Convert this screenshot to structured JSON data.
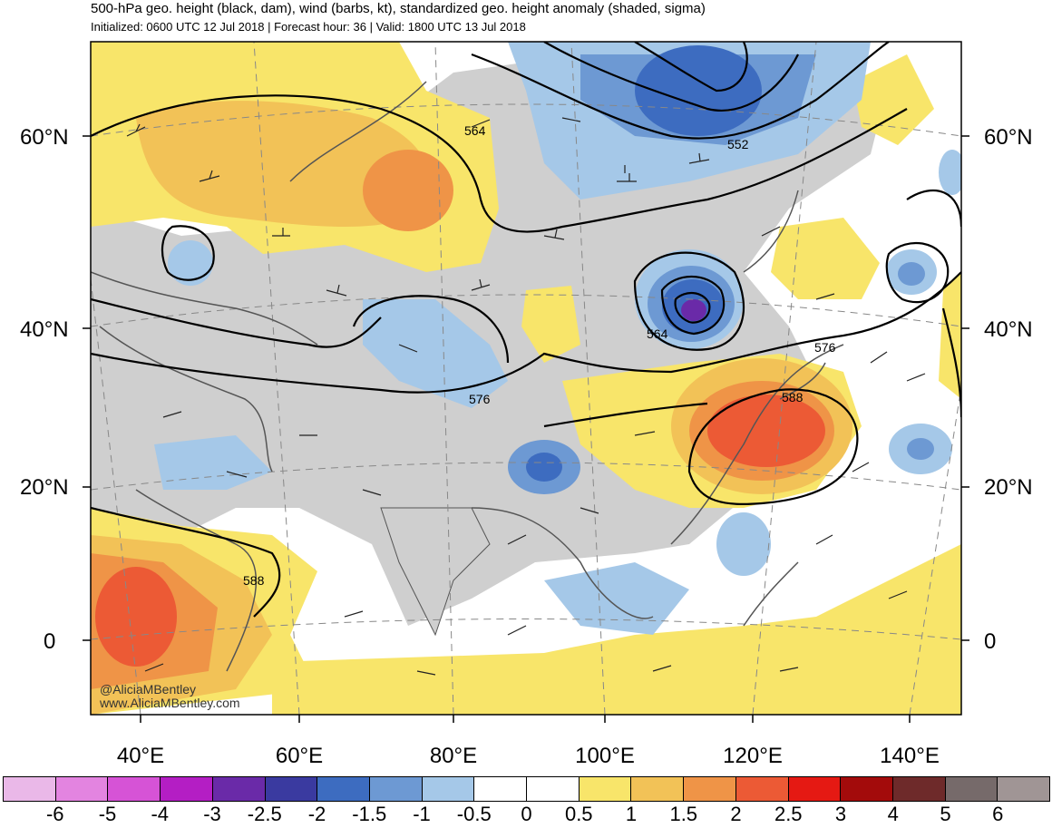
{
  "title": "500-hPa geo. height (black, dam), wind (barbs, kt), standardized geo. height anomaly (shaded, sigma)",
  "subtitle": "Initialized: 0600 UTC 12 Jul 2018 | Forecast hour: 36 | Valid: 1800 UTC 13 Jul 2018",
  "lat_labels": [
    "60°N",
    "40°N",
    "20°N",
    "0"
  ],
  "lon_labels": [
    "40°E",
    "60°E",
    "80°E",
    "100°E",
    "120°E",
    "140°E"
  ],
  "contour_labels": [
    "564",
    "552",
    "564",
    "576",
    "576",
    "588",
    "588"
  ],
  "credit": {
    "handle": "@AliciaMBentley",
    "site": "www.AliciaMBentley.com"
  },
  "colorbar": {
    "labels": [
      "-6",
      "-5",
      "-4",
      "-3",
      "-2.5",
      "-2",
      "-1.5",
      "-1",
      "-0.5",
      "0",
      "0.5",
      "1",
      "1.5",
      "2",
      "2.5",
      "3",
      "4",
      "5",
      "6"
    ],
    "colors": [
      "#eab8e8",
      "#e384e0",
      "#d653d6",
      "#b41ec4",
      "#6a2aa8",
      "#3a3aa0",
      "#3d6cc0",
      "#6d99d3",
      "#a5c8e8",
      "#ffffff",
      "#ffffff",
      "#f8e56a",
      "#f2c257",
      "#ef9447",
      "#ec5a35",
      "#e51913",
      "#a30b0b",
      "#6e2a2a",
      "#766a6a",
      "#a09595"
    ]
  },
  "colors": {
    "land_gray": "#cfcfcf",
    "contour": "#000000",
    "coast": "#555555"
  }
}
